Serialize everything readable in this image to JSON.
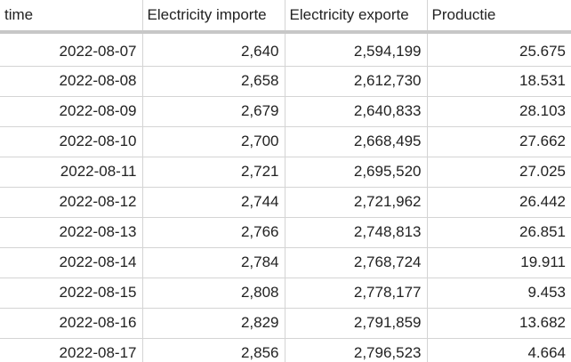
{
  "table": {
    "headers": [
      "time",
      "Electricity importe",
      "Electricity exporte",
      "Productie"
    ],
    "rows": [
      [
        "2022-08-07",
        "2,640",
        "2,594,199",
        "25.675"
      ],
      [
        "2022-08-08",
        "2,658",
        "2,612,730",
        "18.531"
      ],
      [
        "2022-08-09",
        "2,679",
        "2,640,833",
        "28.103"
      ],
      [
        "2022-08-10",
        "2,700",
        "2,668,495",
        "27.662"
      ],
      [
        "2022-08-11",
        "2,721",
        "2,695,520",
        "27.025"
      ],
      [
        "2022-08-12",
        "2,744",
        "2,721,962",
        "26.442"
      ],
      [
        "2022-08-13",
        "2,766",
        "2,748,813",
        "26.851"
      ],
      [
        "2022-08-14",
        "2,784",
        "2,768,724",
        "19.911"
      ],
      [
        "2022-08-15",
        "2,808",
        "2,778,177",
        "9.453"
      ],
      [
        "2022-08-16",
        "2,829",
        "2,791,859",
        "13.682"
      ],
      [
        "2022-08-17",
        "2,856",
        "2,796,523",
        "4.664"
      ]
    ]
  }
}
